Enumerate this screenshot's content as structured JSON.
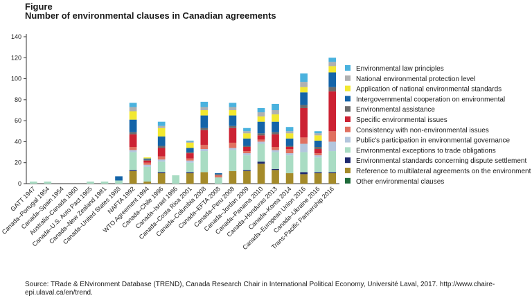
{
  "figure_label": "Figure",
  "title": "Number of environmental clauses in Canadian agreements",
  "source": "Source: TRade & ENvironment Database (TREND), Canada Research Chair in International Political Economy, Université Laval, 2017. http://www.chaire-epi.ulaval.ca/en/trend.",
  "chart_data": {
    "type": "bar",
    "stacked": true,
    "ylim": [
      0,
      140
    ],
    "yticks": [
      0,
      20,
      40,
      60,
      80,
      100,
      120,
      140
    ],
    "grid": false,
    "legend_placement": "right",
    "categories": [
      "GATT 1947",
      "Canada–Portugal 1954",
      "Canada–Spain 1954",
      "Australia–Canada 1960",
      "Canada–U.S. Auto Pact 1965",
      "Canada–New Zealand 1981",
      "Canada–United States 1988",
      "NAFTA 1992",
      "WTO Agreement 1994",
      "Canada–Chile 1996",
      "Canada–Israel 1996",
      "Canada–Costa Rica 2001",
      "Canada–Columbia 2008",
      "Canada–EFTA 2008",
      "Canada–Peru 2008",
      "Canada–Jordan 2009",
      "Canada–Panama 2010",
      "Canada–Honduras 2013",
      "Canada–Korea 2014",
      "Canada–European Union 2016",
      "Canada–Ukraine 2016",
      "Trans-Pacific Partnership 2016"
    ],
    "series": [
      {
        "name": "Other environmental clauses",
        "color": "#1e6b3a",
        "values": [
          0,
          0,
          0,
          0,
          0,
          0,
          0,
          0,
          0,
          0,
          0,
          0,
          0,
          0,
          0,
          0,
          0,
          0,
          0,
          0,
          0,
          0
        ]
      },
      {
        "name": "Reference to multilateral agreements on the environment",
        "color": "#a58b2a",
        "values": [
          0,
          0,
          0,
          0,
          0,
          0,
          0,
          12,
          2,
          10,
          0,
          10,
          11,
          0,
          12,
          12,
          19,
          13,
          10,
          9,
          10,
          10
        ]
      },
      {
        "name": "Environmental standards concerning dispute settlement",
        "color": "#1f2a6e",
        "values": [
          0,
          0,
          0,
          0,
          0,
          0,
          0,
          1,
          0,
          1,
          0,
          1,
          0,
          0,
          0,
          1,
          2,
          1,
          0,
          2,
          1,
          1
        ]
      },
      {
        "name": "Environmental exceptions to trade obligations",
        "color": "#a9dcc3",
        "values": [
          2,
          2,
          0,
          0,
          2,
          2,
          3,
          17,
          14,
          10,
          8,
          9,
          20,
          6,
          20,
          14,
          17,
          16,
          17,
          19,
          14,
          20
        ]
      },
      {
        "name": "Public's participation in environmental governance",
        "color": "#b3c6dd",
        "values": [
          0,
          0,
          0,
          0,
          0,
          0,
          0,
          2,
          2,
          2,
          0,
          2,
          2,
          0,
          2,
          2,
          2,
          2,
          2,
          8,
          2,
          9
        ]
      },
      {
        "name": "Consistency with non-environmental issues",
        "color": "#e07060",
        "values": [
          0,
          0,
          0,
          0,
          0,
          0,
          0,
          3,
          2,
          3,
          0,
          2,
          4,
          2,
          5,
          2,
          2,
          3,
          4,
          6,
          2,
          10
        ]
      },
      {
        "name": "Specific environmental issues",
        "color": "#cc2233",
        "values": [
          0,
          0,
          0,
          0,
          0,
          0,
          0,
          12,
          2,
          8,
          0,
          5,
          14,
          0,
          14,
          4,
          4,
          12,
          2,
          28,
          4,
          38
        ]
      },
      {
        "name": "Environmental assistance",
        "color": "#6b6b6b",
        "values": [
          0,
          0,
          0,
          0,
          0,
          0,
          0,
          2,
          1,
          2,
          0,
          1,
          2,
          1,
          2,
          1,
          2,
          2,
          1,
          3,
          2,
          4
        ]
      },
      {
        "name": "Intergovernmental cooperation on environmental",
        "color": "#1464a8",
        "values": [
          0,
          0,
          0,
          0,
          0,
          0,
          4,
          12,
          1,
          9,
          0,
          4,
          12,
          1,
          10,
          7,
          11,
          10,
          7,
          12,
          6,
          14
        ]
      },
      {
        "name": "Application of national environmental standards",
        "color": "#f2e830",
        "values": [
          0,
          0,
          0,
          0,
          0,
          0,
          0,
          8,
          1,
          8,
          0,
          5,
          5,
          0,
          5,
          5,
          5,
          7,
          5,
          5,
          5,
          6
        ]
      },
      {
        "name": "National environmental protection level",
        "color": "#b0b0b0",
        "values": [
          0,
          0,
          0,
          0,
          0,
          0,
          0,
          4,
          0,
          2,
          0,
          1,
          3,
          0,
          3,
          2,
          4,
          4,
          2,
          5,
          2,
          4
        ]
      },
      {
        "name": "Environmental law principles",
        "color": "#4ab2de",
        "values": [
          0,
          0,
          0,
          0,
          0,
          0,
          0,
          4,
          0,
          4,
          0,
          1,
          5,
          0,
          4,
          3,
          4,
          6,
          4,
          8,
          2,
          4
        ]
      }
    ]
  }
}
